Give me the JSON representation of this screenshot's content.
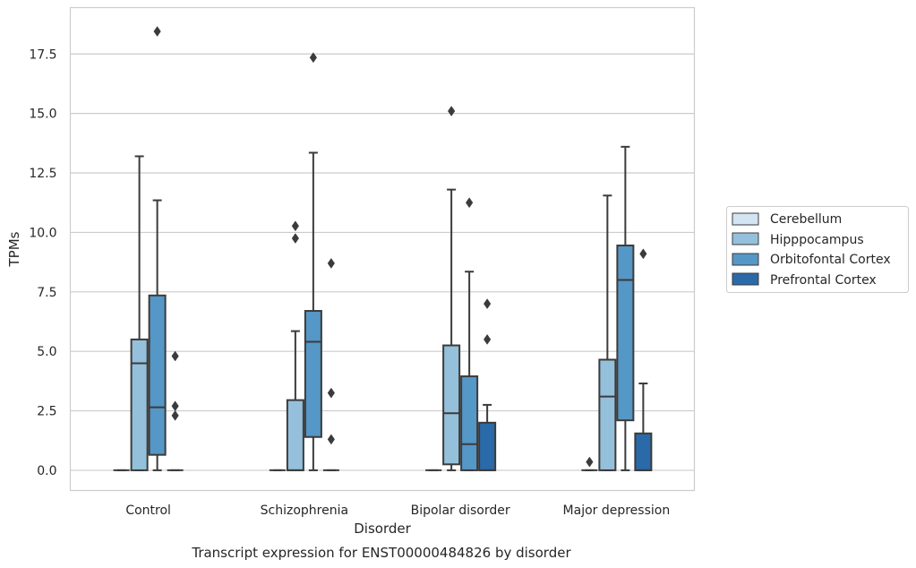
{
  "chart_data": {
    "type": "box",
    "caption": "Transcript expression for ENST00000484826 by disorder",
    "xlabel": "Disorder",
    "ylabel": "TPMs",
    "ylim": [
      -0.85,
      19.45
    ],
    "yticks": [
      0.0,
      2.5,
      5.0,
      7.5,
      10.0,
      12.5,
      15.0,
      17.5
    ],
    "ytick_labels": [
      "0.0",
      "2.5",
      "5.0",
      "7.5",
      "10.0",
      "12.5",
      "15.0",
      "17.5"
    ],
    "grid": true,
    "legend_position": "right",
    "categories": [
      "Control",
      "Schizophrenia",
      "Bipolar disorder",
      "Major depression"
    ],
    "series": [
      {
        "name": "Cerebellum",
        "color": "#d3e4f3",
        "boxes": [
          {
            "whislo": 0,
            "q1": 0,
            "med": 0,
            "q3": 0,
            "whishi": 0,
            "fliers": []
          },
          {
            "whislo": 0,
            "q1": 0,
            "med": 0,
            "q3": 0,
            "whishi": 0,
            "fliers": []
          },
          {
            "whislo": 0,
            "q1": 0,
            "med": 0,
            "q3": 0,
            "whishi": 0,
            "fliers": []
          },
          {
            "whislo": 0,
            "q1": 0,
            "med": 0,
            "q3": 0,
            "whishi": 0,
            "fliers": [
              0.35
            ]
          }
        ]
      },
      {
        "name": "Hipppocampus",
        "color": "#95c0dc",
        "boxes": [
          {
            "whislo": 0,
            "q1": 0,
            "med": 4.5,
            "q3": 5.5,
            "whishi": 13.2,
            "fliers": []
          },
          {
            "whislo": 0,
            "q1": 0,
            "med": 0,
            "q3": 2.95,
            "whishi": 5.85,
            "fliers": [
              9.75,
              10.27
            ]
          },
          {
            "whislo": 0,
            "q1": 0.25,
            "med": 2.4,
            "q3": 5.25,
            "whishi": 11.8,
            "fliers": [
              15.1
            ]
          },
          {
            "whislo": 0,
            "q1": 0,
            "med": 3.1,
            "q3": 4.65,
            "whishi": 11.55,
            "fliers": []
          }
        ]
      },
      {
        "name": "Orbitofontal Cortex",
        "color": "#5597c6",
        "boxes": [
          {
            "whislo": 0,
            "q1": 0.65,
            "med": 2.65,
            "q3": 7.35,
            "whishi": 11.35,
            "fliers": [
              18.45
            ]
          },
          {
            "whislo": 0,
            "q1": 1.4,
            "med": 5.4,
            "q3": 6.7,
            "whishi": 13.35,
            "fliers": [
              17.35
            ]
          },
          {
            "whislo": 0,
            "q1": 0,
            "med": 1.1,
            "q3": 3.95,
            "whishi": 8.35,
            "fliers": [
              11.25
            ]
          },
          {
            "whislo": 0,
            "q1": 2.1,
            "med": 8.0,
            "q3": 9.45,
            "whishi": 13.6,
            "fliers": []
          }
        ]
      },
      {
        "name": "Prefrontal Cortex",
        "color": "#2a6aa8",
        "boxes": [
          {
            "whislo": 0,
            "q1": 0,
            "med": 0,
            "q3": 0,
            "whishi": 0,
            "fliers": [
              2.3,
              2.7,
              4.8
            ]
          },
          {
            "whislo": 0,
            "q1": 0,
            "med": 0,
            "q3": 0,
            "whishi": 0,
            "fliers": [
              1.3,
              3.25,
              8.7
            ]
          },
          {
            "whislo": 0,
            "q1": 0,
            "med": 0,
            "q3": 2.0,
            "whishi": 2.75,
            "fliers": [
              5.5,
              7.0
            ]
          },
          {
            "whislo": 0,
            "q1": 0,
            "med": 0,
            "q3": 1.55,
            "whishi": 3.65,
            "fliers": [
              9.1
            ]
          }
        ]
      }
    ]
  }
}
